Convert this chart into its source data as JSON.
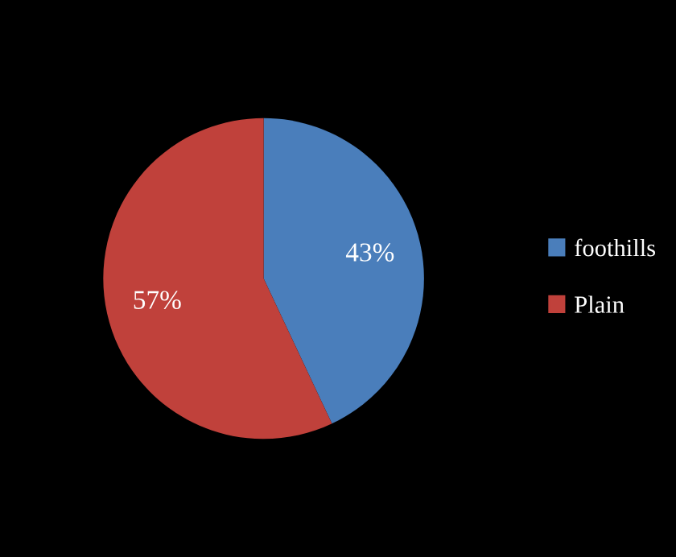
{
  "chart_data": {
    "type": "pie",
    "categories": [
      "foothills",
      "Plain"
    ],
    "values": [
      43,
      57
    ],
    "colors": [
      "#4a7ebb",
      "#c0413b"
    ],
    "value_labels": [
      "43%",
      "57%"
    ],
    "legend": "right"
  }
}
